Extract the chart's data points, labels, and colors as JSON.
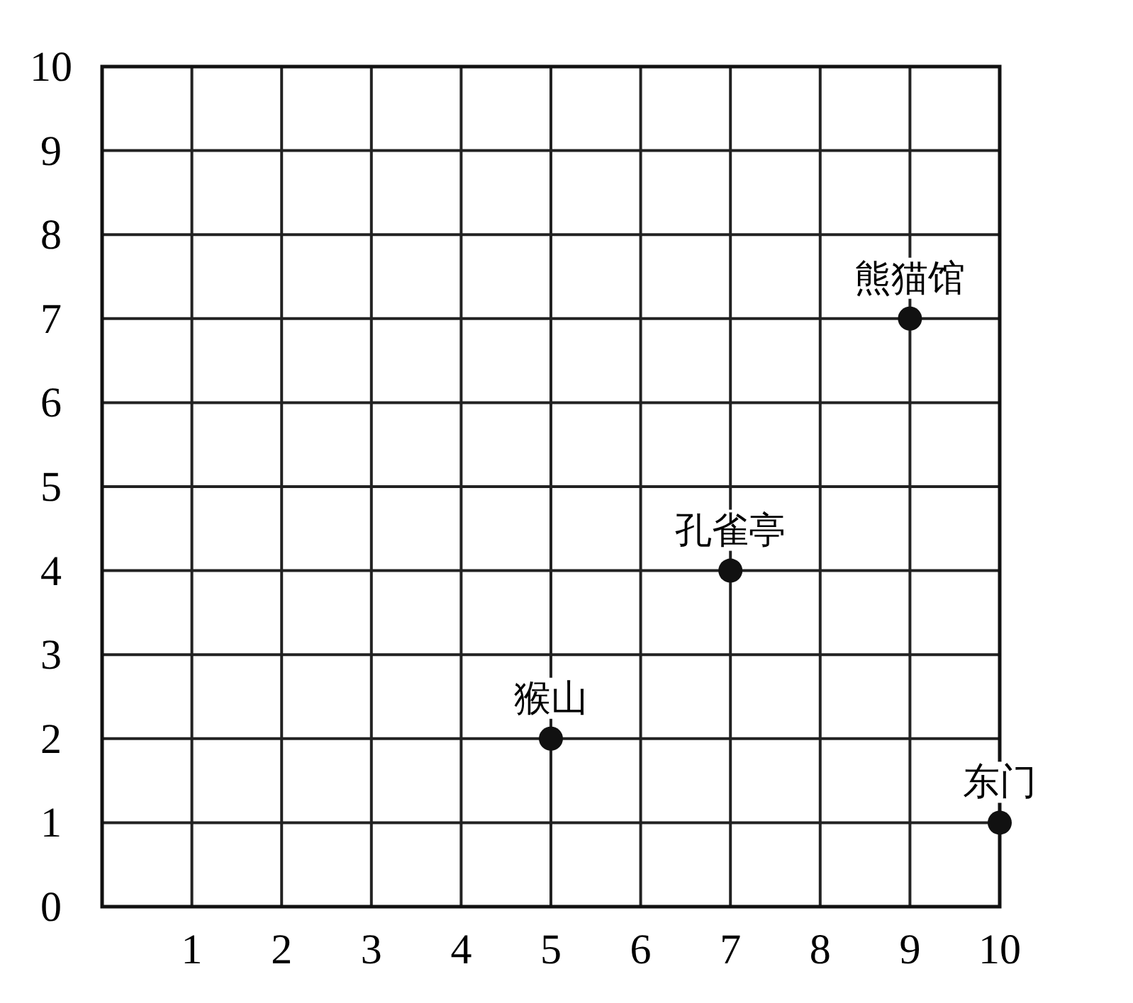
{
  "chart_data": {
    "type": "scatter",
    "series": [
      {
        "color": "#111111",
        "x": [
          5,
          7,
          9,
          10
        ],
        "values": [
          2,
          4,
          7,
          1
        ]
      }
    ],
    "marker": "circle",
    "xlim": [
      0,
      10
    ],
    "ylim": [
      0,
      10
    ],
    "xticks": [
      {
        "value": 0,
        "label": null
      },
      1,
      2,
      3,
      4,
      5,
      6,
      7,
      8,
      9,
      10
    ],
    "yticks": [
      0,
      1,
      2,
      3,
      4,
      5,
      6,
      7,
      8,
      9,
      10
    ],
    "grid": true,
    "annotations": [
      {
        "text": "猴山",
        "x": 5,
        "y": 2
      },
      {
        "text": "孔雀亭",
        "x": 7,
        "y": 4
      },
      {
        "text": "熊猫馆",
        "x": 9,
        "y": 7
      },
      {
        "text": "东门",
        "x": 10,
        "y": 1
      }
    ]
  }
}
